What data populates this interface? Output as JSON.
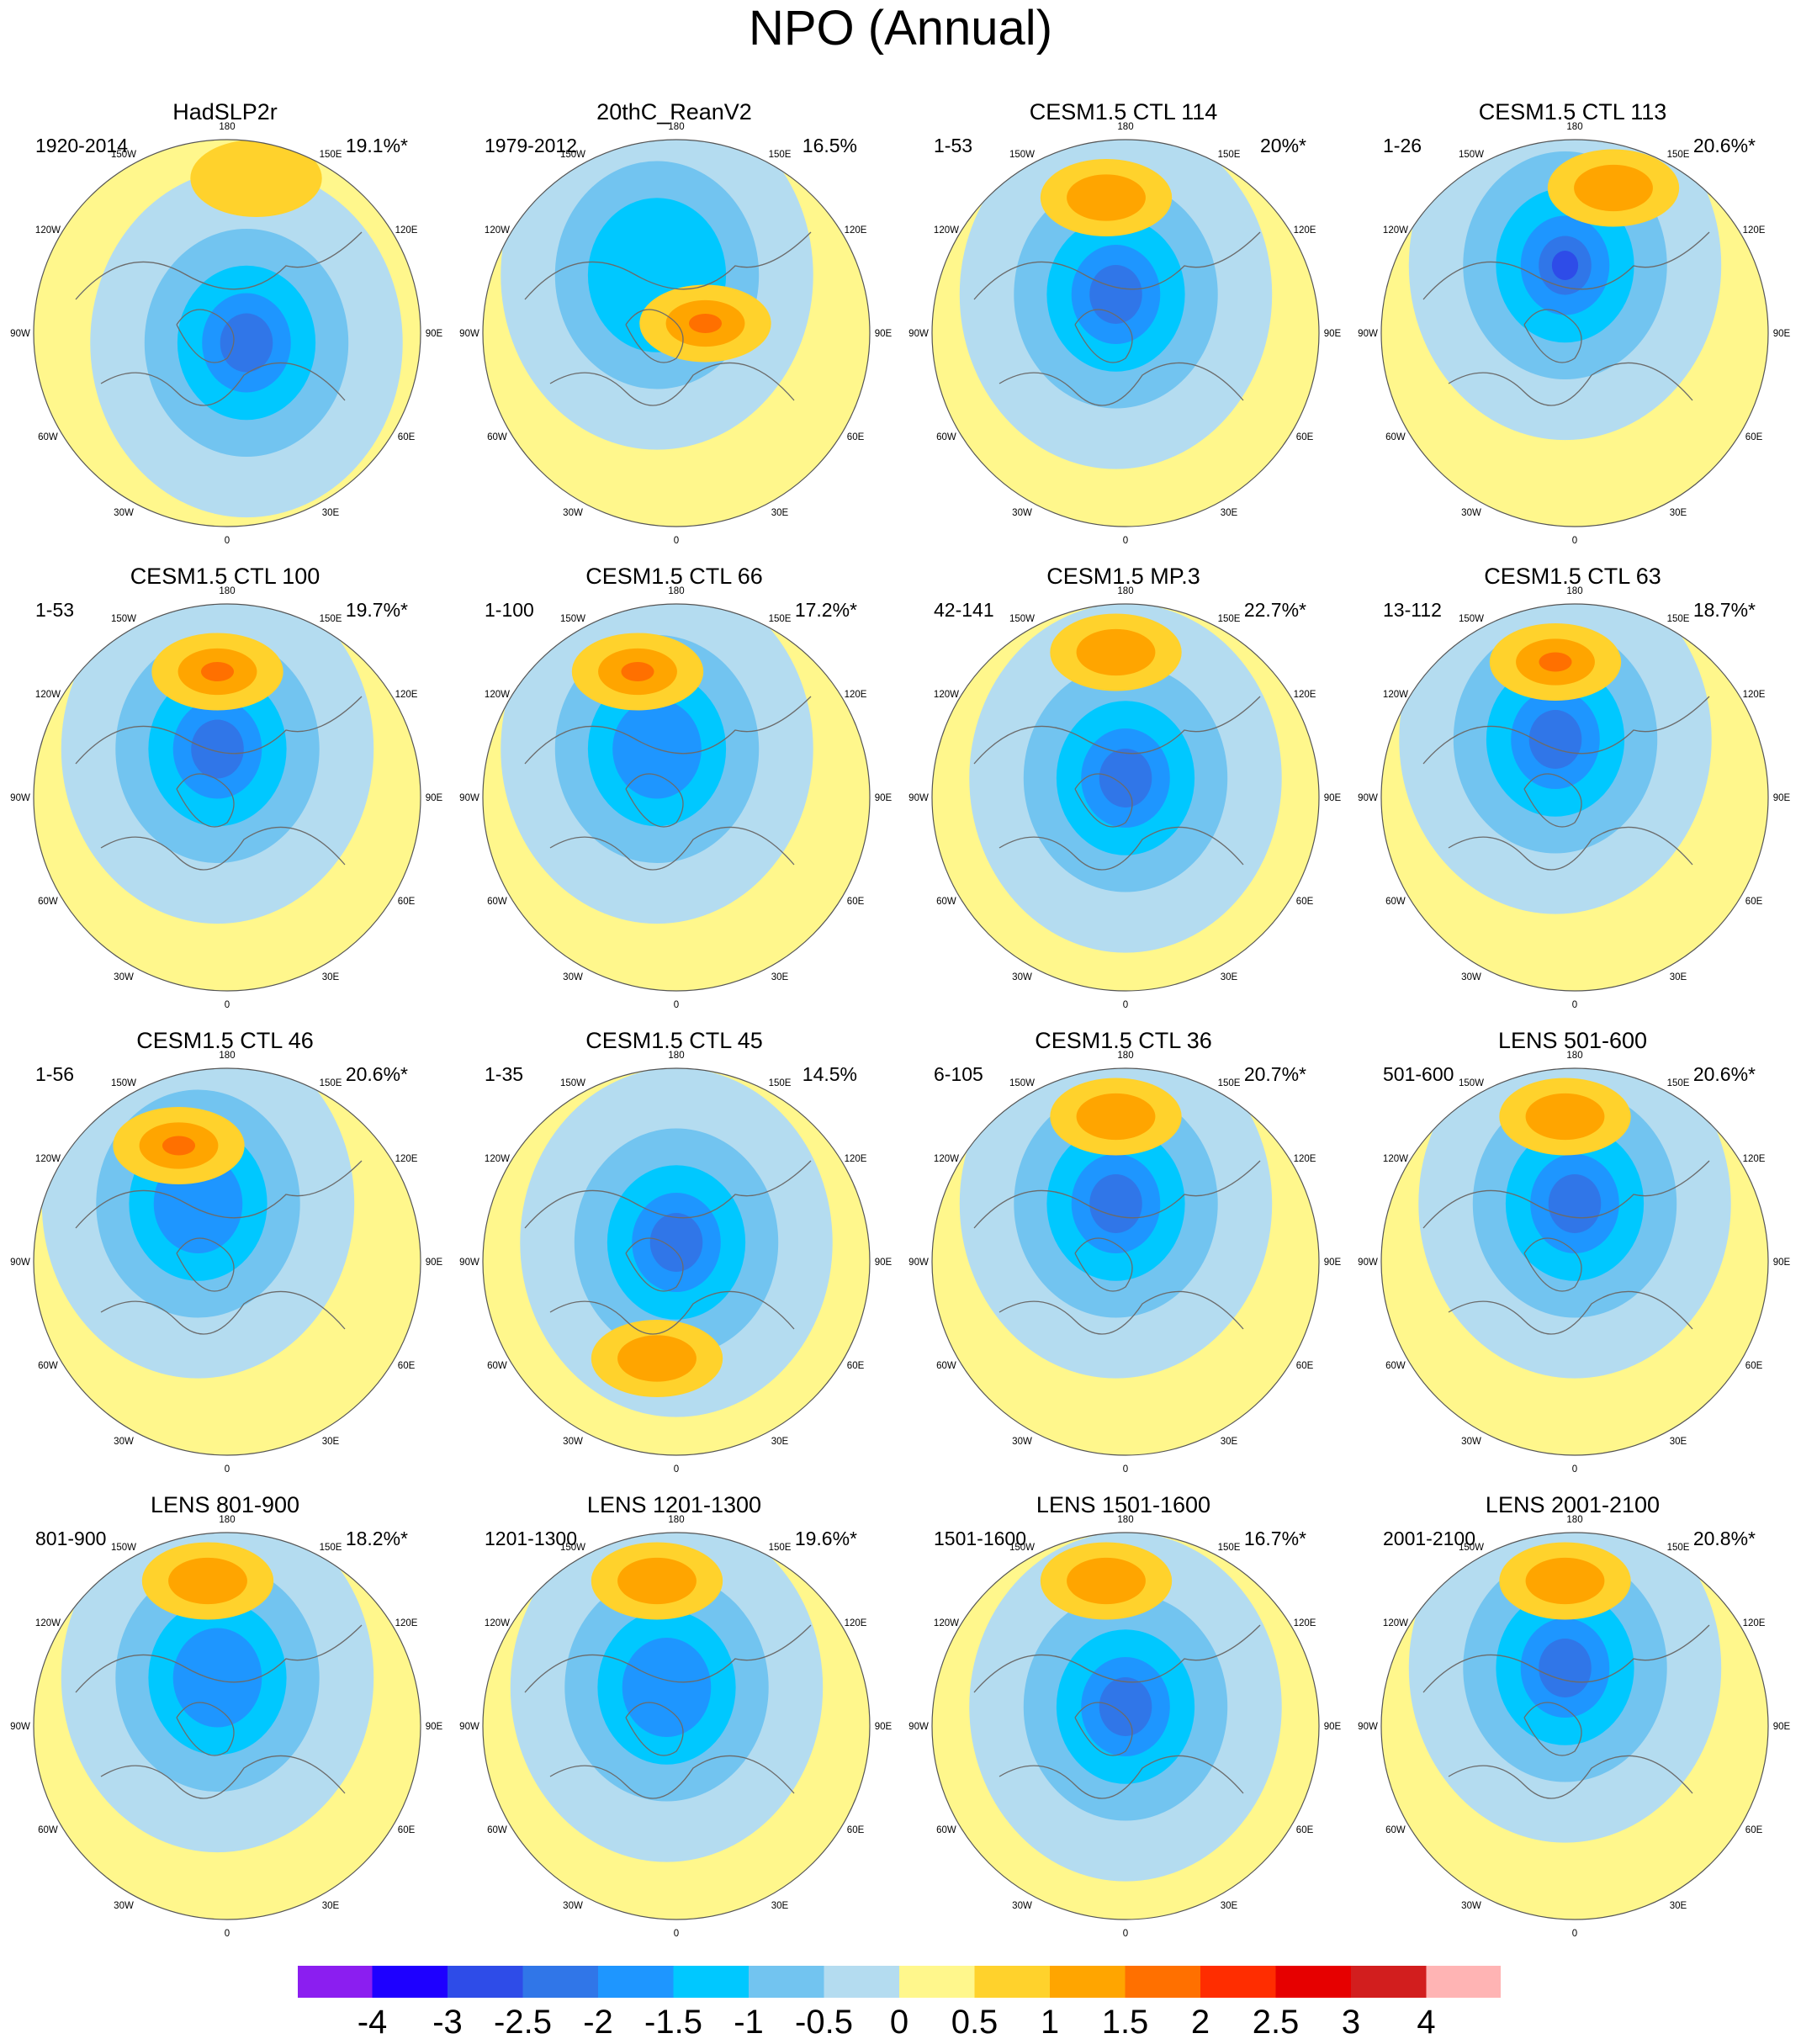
{
  "title": "NPO (Annual)",
  "longitude_labels": [
    "180",
    "150E",
    "120E",
    "90E",
    "60E",
    "30E",
    "0",
    "30W",
    "60W",
    "90W",
    "120W",
    "150W"
  ],
  "panels": [
    {
      "title": "HadSLP2r",
      "years": "1920-2014",
      "percent": "19.1%*",
      "neg_center": [
        0.1,
        -0.05
      ],
      "neg_min": -2.0,
      "pos_center": [
        0.15,
        0.8
      ],
      "pos_max": 0.5
    },
    {
      "title": "20thC_ReanV2",
      "years": "1979-2012",
      "percent": "16.5%",
      "neg_center": [
        -0.1,
        0.3
      ],
      "neg_min": -1.0,
      "pos_center": [
        0.15,
        0.05
      ],
      "pos_max": 1.5
    },
    {
      "title": "CESM1.5 CTL 114",
      "years": "1-53",
      "percent": "20%*",
      "neg_center": [
        -0.05,
        0.2
      ],
      "neg_min": -2.0,
      "pos_center": [
        -0.1,
        0.7
      ],
      "pos_max": 1.0
    },
    {
      "title": "CESM1.5 CTL 113",
      "years": "1-26",
      "percent": "20.6%*",
      "neg_center": [
        -0.05,
        0.35
      ],
      "neg_min": -2.5,
      "pos_center": [
        0.2,
        0.75
      ],
      "pos_max": 1.0
    },
    {
      "title": "CESM1.5 CTL 100",
      "years": "1-53",
      "percent": "19.7%*",
      "neg_center": [
        -0.05,
        0.25
      ],
      "neg_min": -2.0,
      "pos_center": [
        -0.05,
        0.65
      ],
      "pos_max": 1.5
    },
    {
      "title": "CESM1.5 CTL 66",
      "years": "1-100",
      "percent": "17.2%*",
      "neg_center": [
        -0.1,
        0.25
      ],
      "neg_min": -1.5,
      "pos_center": [
        -0.2,
        0.65
      ],
      "pos_max": 1.5
    },
    {
      "title": "CESM1.5 MP.3",
      "years": "42-141",
      "percent": "22.7%*",
      "neg_center": [
        0.0,
        0.1
      ],
      "neg_min": -2.0,
      "pos_center": [
        -0.05,
        0.75
      ],
      "pos_max": 1.0
    },
    {
      "title": "CESM1.5 CTL 63",
      "years": "13-112",
      "percent": "18.7%*",
      "neg_center": [
        -0.1,
        0.3
      ],
      "neg_min": -2.0,
      "pos_center": [
        -0.1,
        0.7
      ],
      "pos_max": 1.5
    },
    {
      "title": "CESM1.5 CTL 46",
      "years": "1-56",
      "percent": "20.6%*",
      "neg_center": [
        -0.15,
        0.3
      ],
      "neg_min": -1.5,
      "pos_center": [
        -0.25,
        0.6
      ],
      "pos_max": 1.5
    },
    {
      "title": "CESM1.5 CTL 45",
      "years": "1-35",
      "percent": "14.5%",
      "neg_center": [
        0.0,
        0.1
      ],
      "neg_min": -2.0,
      "pos_center": [
        -0.1,
        -0.5
      ],
      "pos_max": 1.0
    },
    {
      "title": "CESM1.5 CTL 36",
      "years": "6-105",
      "percent": "20.7%*",
      "neg_center": [
        -0.05,
        0.3
      ],
      "neg_min": -2.0,
      "pos_center": [
        -0.05,
        0.75
      ],
      "pos_max": 1.0
    },
    {
      "title": "LENS 501-600",
      "years": "501-600",
      "percent": "20.6%*",
      "neg_center": [
        0.0,
        0.3
      ],
      "neg_min": -2.0,
      "pos_center": [
        -0.05,
        0.75
      ],
      "pos_max": 1.0
    },
    {
      "title": "LENS 801-900",
      "years": "801-900",
      "percent": "18.2%*",
      "neg_center": [
        -0.05,
        0.25
      ],
      "neg_min": -1.5,
      "pos_center": [
        -0.1,
        0.75
      ],
      "pos_max": 1.0
    },
    {
      "title": "LENS 1201-1300",
      "years": "1201-1300",
      "percent": "19.6%*",
      "neg_center": [
        -0.05,
        0.2
      ],
      "neg_min": -1.5,
      "pos_center": [
        -0.1,
        0.75
      ],
      "pos_max": 1.0
    },
    {
      "title": "LENS 1501-1600",
      "years": "1501-1600",
      "percent": "16.7%*",
      "neg_center": [
        0.0,
        0.1
      ],
      "neg_min": -2.0,
      "pos_center": [
        -0.1,
        0.75
      ],
      "pos_max": 1.0
    },
    {
      "title": "LENS 2001-2100",
      "years": "2001-2100",
      "percent": "20.8%*",
      "neg_center": [
        -0.05,
        0.3
      ],
      "neg_min": -2.0,
      "pos_center": [
        -0.05,
        0.75
      ],
      "pos_max": 1.0
    }
  ],
  "colorbar": {
    "colors": [
      "#8B1EF0",
      "#1E00FF",
      "#2E4CE8",
      "#3076E8",
      "#1E96FF",
      "#00C8FF",
      "#72C4F0",
      "#B4DCF0",
      "#FFF78C",
      "#FFD22C",
      "#FFA500",
      "#FF7000",
      "#FF2D00",
      "#E60000",
      "#D21E1E",
      "#FFB4B4"
    ],
    "labels": [
      "-4",
      "-3",
      "-2.5",
      "-2",
      "-1.5",
      "-1",
      "-0.5",
      "0",
      "0.5",
      "1",
      "1.5",
      "2",
      "2.5",
      "3",
      "4"
    ],
    "label_values": [
      -4,
      -3,
      -2.5,
      -2,
      -1.5,
      -1,
      -0.5,
      0,
      0.5,
      1,
      1.5,
      2,
      2.5,
      3,
      4
    ]
  }
}
